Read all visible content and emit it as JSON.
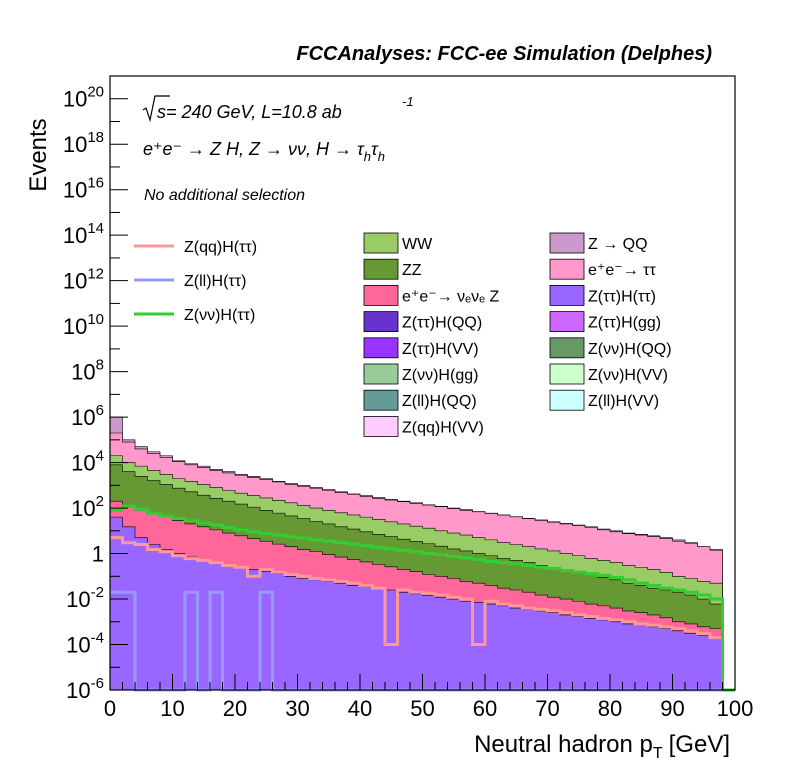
{
  "header": {
    "title": "FCCAnalyses: FCC-ee Simulation (Delphes)"
  },
  "chart_data": {
    "type": "area",
    "title": "FCCAnalyses: FCC-ee Simulation (Delphes)",
    "xlabel": "Neutral hadron p",
    "xlabel_sub": "T",
    "xlabel_unit": "[GeV]",
    "ylabel": "Events",
    "xlim": [
      0,
      100
    ],
    "ylim": [
      1e-06,
      1e+21
    ],
    "yscale": "log",
    "grid": false,
    "x_ticks": [
      0,
      10,
      20,
      30,
      40,
      50,
      60,
      70,
      80,
      90,
      100
    ],
    "y_ticks": [
      {
        "v": 1e-06,
        "m": "10",
        "e": "-6"
      },
      {
        "v": 0.0001,
        "m": "10",
        "e": "-4"
      },
      {
        "v": 0.01,
        "m": "10",
        "e": "-2"
      },
      {
        "v": 1,
        "m": "1",
        "e": ""
      },
      {
        "v": 100.0,
        "m": "10",
        "e": "2"
      },
      {
        "v": 10000.0,
        "m": "10",
        "e": "4"
      },
      {
        "v": 1000000.0,
        "m": "10",
        "e": "6"
      },
      {
        "v": 100000000.0,
        "m": "10",
        "e": "8"
      },
      {
        "v": 10000000000.0,
        "m": "10",
        "e": "10"
      },
      {
        "v": 1000000000000.0,
        "m": "10",
        "e": "12"
      },
      {
        "v": 100000000000000.0,
        "m": "10",
        "e": "14"
      },
      {
        "v": 1e+16,
        "m": "10",
        "e": "16"
      },
      {
        "v": 1e+18,
        "m": "10",
        "e": "18"
      },
      {
        "v": 1e+20,
        "m": "10",
        "e": "20"
      }
    ],
    "annotations": {
      "energy_sqrt": "s",
      "energy_rest": " = 240 GeV, L=10.8 ab",
      "energy_exp": "-1",
      "process": "e⁺e⁻ → Z H, Z → νν, H → τ",
      "process_sub1": "h",
      "process_tau2": "τ",
      "process_sub2": "h",
      "selection": "No additional selection"
    },
    "stack_legend": [
      {
        "label": "WW",
        "color": "#99cc66"
      },
      {
        "label": "Z → QQ",
        "color": "#cc99cc"
      },
      {
        "label": "ZZ",
        "color": "#669933"
      },
      {
        "label": "e⁺e⁻→ ττ",
        "color": "#ff99cc"
      },
      {
        "label": "e⁺e⁻→ νₑνₑ Z",
        "color": "#ff6699"
      },
      {
        "label": "Z(ττ)H(ττ)",
        "color": "#9966ff"
      },
      {
        "label": "Z(ττ)H(QQ)",
        "color": "#6633cc"
      },
      {
        "label": "Z(ττ)H(gg)",
        "color": "#cc66ff"
      },
      {
        "label": "Z(ττ)H(VV)",
        "color": "#9933ff"
      },
      {
        "label": "Z(νν)H(QQ)",
        "color": "#669966"
      },
      {
        "label": "Z(νν)H(gg)",
        "color": "#99cc99"
      },
      {
        "label": "Z(νν)H(VV)",
        "color": "#ccffcc"
      },
      {
        "label": "Z(ll)H(QQ)",
        "color": "#669999"
      },
      {
        "label": "Z(ll)H(VV)",
        "color": "#ccffff"
      },
      {
        "label": "Z(qq)H(VV)",
        "color": "#ffccff"
      }
    ],
    "line_legend": [
      {
        "label": "Z(qq)H(ττ)",
        "color": "#ff9999"
      },
      {
        "label": "Z(ll)H(ττ)",
        "color": "#9999ff"
      },
      {
        "label": "Z(νν)H(ττ)",
        "color": "#33cc33"
      }
    ],
    "bin_width": 2,
    "x": [
      1,
      3,
      5,
      7,
      9,
      11,
      13,
      15,
      17,
      19,
      21,
      23,
      25,
      27,
      29,
      31,
      33,
      35,
      37,
      39,
      41,
      43,
      45,
      47,
      49,
      51,
      53,
      55,
      57,
      59,
      61,
      63,
      65,
      67,
      69,
      71,
      73,
      75,
      77,
      79,
      81,
      83,
      85,
      87,
      89,
      91,
      93,
      95,
      97,
      99
    ],
    "stack_totals": [
      {
        "name": "Z → QQ",
        "values": [
          1000000.0,
          100000.0,
          50000.0,
          30000.0,
          20000.0,
          12000.0,
          9000.0,
          7000.0,
          5000.0,
          4000.0,
          3000.0,
          2500.0,
          2000.0,
          1500.0,
          1200.0,
          1000.0,
          800,
          650,
          520,
          420,
          350,
          290,
          240,
          200,
          170,
          140,
          120,
          100,
          85,
          70,
          60,
          50,
          42,
          35,
          30,
          25,
          21,
          18,
          15,
          12,
          10,
          8,
          7,
          6,
          5,
          4,
          3,
          2,
          1.5,
          0
        ]
      },
      {
        "name": "e⁺e⁻→ ττ",
        "values": [
          200000.0,
          80000.0,
          40000.0,
          25000.0,
          17000.0,
          11000.0,
          8000.0,
          6000.0,
          4500.0,
          3500.0,
          2800.0,
          2200.0,
          1800.0,
          1400.0,
          1100.0,
          900,
          750,
          600,
          480,
          400,
          330,
          270,
          225,
          190,
          160,
          135,
          115,
          95,
          80,
          68,
          58,
          49,
          41,
          34,
          29,
          24,
          20,
          17,
          14,
          11,
          9,
          7.5,
          6.5,
          5.5,
          4.5,
          3.5,
          2.8,
          2,
          1.4,
          0
        ]
      },
      {
        "name": "WW",
        "values": [
          20000.0,
          10000.0,
          7000.0,
          4500.0,
          3000.0,
          2000.0,
          1500.0,
          1100.0,
          800,
          600,
          450,
          350,
          280,
          220,
          170,
          130,
          100,
          80,
          62,
          50,
          40,
          32,
          25,
          20,
          16,
          13,
          10,
          8,
          6.5,
          5,
          4,
          3,
          2.5,
          2,
          1.6,
          1.3,
          1,
          0.8,
          0.6,
          0.5,
          0.4,
          0.3,
          0.25,
          0.2,
          0.15,
          0.1,
          0.08,
          0.06,
          0.05,
          0
        ]
      },
      {
        "name": "ZZ",
        "values": [
          8000.0,
          4000.0,
          2500.0,
          1600.0,
          1100.0,
          750,
          520,
          370,
          270,
          200,
          150,
          110,
          80,
          60,
          45,
          34,
          26,
          20,
          15,
          12,
          9,
          7,
          5.5,
          4.3,
          3.4,
          2.7,
          2.1,
          1.6,
          1.3,
          1,
          0.8,
          0.6,
          0.5,
          0.4,
          0.3,
          0.25,
          0.2,
          0.15,
          0.12,
          0.09,
          0.07,
          0.05,
          0.04,
          0.03,
          0.025,
          0.02,
          0.015,
          0.01,
          0.006,
          0
        ]
      },
      {
        "name": "e⁺e⁻→ νₑνₑ Z",
        "values": [
          200,
          120,
          80,
          55,
          40,
          28,
          20,
          15,
          11,
          8,
          6,
          4.5,
          3.5,
          2.6,
          2,
          1.5,
          1.2,
          0.9,
          0.7,
          0.55,
          0.43,
          0.33,
          0.26,
          0.2,
          0.16,
          0.12,
          0.1,
          0.08,
          0.06,
          0.05,
          0.04,
          0.03,
          0.025,
          0.02,
          0.015,
          0.012,
          0.01,
          0.008,
          0.006,
          0.005,
          0.004,
          0.003,
          0.0025,
          0.002,
          0.0015,
          0.001,
          0.0008,
          0.0006,
          0.0005,
          0
        ]
      },
      {
        "name": "Z(ττ)H(ττ)",
        "values": [
          40,
          15,
          5,
          2.5,
          1.5,
          1,
          0.7,
          0.5,
          0.4,
          0.3,
          0.25,
          0.2,
          0.16,
          0.13,
          0.1,
          0.08,
          0.07,
          0.06,
          0.05,
          0.04,
          0.035,
          0.03,
          0.025,
          0.02,
          0.017,
          0.014,
          0.012,
          0.01,
          0.008,
          0.007,
          0.006,
          0.005,
          0.004,
          0.0035,
          0.003,
          0.0025,
          0.002,
          0.0017,
          0.0014,
          0.0012,
          0.001,
          0.0008,
          0.0007,
          0.0006,
          0.0005,
          0.0004,
          0.0003,
          0.00025,
          0.0002,
          0
        ]
      }
    ],
    "line_series": [
      {
        "name": "Z(qq)H(ττ)",
        "values": [
          5,
          3,
          2.5,
          1.5,
          1.2,
          0.8,
          0.6,
          0.5,
          0.4,
          0.3,
          0.25,
          0.1,
          0.2,
          0.15,
          0.12,
          0.1,
          0.08,
          0.07,
          0.06,
          0.05,
          0.04,
          0.03,
          0.0001,
          0.025,
          0.02,
          0.018,
          0.015,
          0.012,
          0.01,
          0.0001,
          0.008,
          0.006,
          0.005,
          0.004,
          0.0035,
          0.003,
          0.0025,
          0.002,
          0.0017,
          0.0014,
          0.0012,
          0.001,
          0.0008,
          0.0007,
          0.0006,
          0.0005,
          0.0004,
          0.0003,
          0.0002,
          0
        ]
      },
      {
        "name": "Z(ll)H(ττ)",
        "values": [
          0.02,
          0.02,
          0,
          0,
          0,
          0,
          0.02,
          0,
          0.02,
          0,
          0,
          0,
          0.02,
          0,
          0,
          0,
          0,
          0,
          0,
          0,
          0,
          0,
          0,
          0,
          0,
          0,
          0,
          0,
          0,
          0,
          0,
          0,
          0,
          0,
          0,
          0,
          0,
          0,
          0,
          0,
          0,
          0,
          0,
          0,
          0,
          0,
          0,
          0,
          0,
          0
        ]
      },
      {
        "name": "Z(νν)H(ττ)",
        "values": [
          80,
          120,
          90,
          60,
          45,
          35,
          28,
          22,
          18,
          14,
          11,
          9,
          7.5,
          6.5,
          5.5,
          4.8,
          4,
          3.5,
          3,
          2.6,
          2.2,
          1.9,
          1.6,
          1.4,
          1.2,
          1,
          0.9,
          0.75,
          0.65,
          0.55,
          0.45,
          0.4,
          0.35,
          0.3,
          0.25,
          0.22,
          0.18,
          0.15,
          0.13,
          0.11,
          0.09,
          0.07,
          0.05,
          0.04,
          0.03,
          0.025,
          0.02,
          0.015,
          0.01,
          0
        ]
      }
    ]
  }
}
